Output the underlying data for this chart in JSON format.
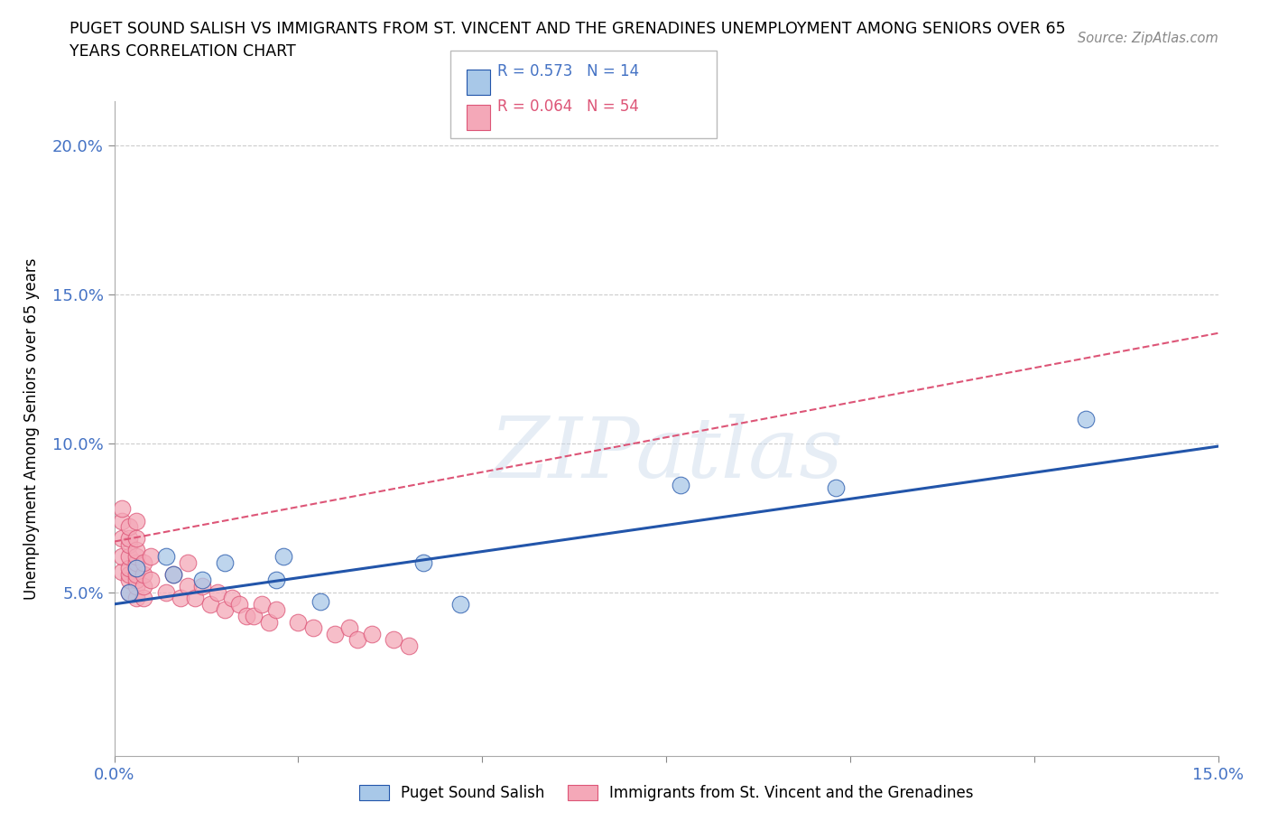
{
  "title_line1": "PUGET SOUND SALISH VS IMMIGRANTS FROM ST. VINCENT AND THE GRENADINES UNEMPLOYMENT AMONG SENIORS OVER 65",
  "title_line2": "YEARS CORRELATION CHART",
  "source": "Source: ZipAtlas.com",
  "ylabel": "Unemployment Among Seniors over 65 years",
  "xlim": [
    0.0,
    0.15
  ],
  "ylim": [
    -0.005,
    0.215
  ],
  "blue_R": 0.573,
  "blue_N": 14,
  "pink_R": 0.064,
  "pink_N": 54,
  "blue_color": "#a8c8e8",
  "pink_color": "#f4a8b8",
  "blue_line_color": "#2255aa",
  "pink_line_color": "#dd5577",
  "watermark": "ZIPatlas",
  "blue_scatter_x": [
    0.002,
    0.003,
    0.007,
    0.008,
    0.012,
    0.015,
    0.022,
    0.023,
    0.028,
    0.042,
    0.047,
    0.077,
    0.098,
    0.132
  ],
  "blue_scatter_y": [
    0.05,
    0.058,
    0.062,
    0.056,
    0.054,
    0.06,
    0.054,
    0.062,
    0.047,
    0.06,
    0.046,
    0.086,
    0.085,
    0.108
  ],
  "pink_scatter_x": [
    0.001,
    0.001,
    0.001,
    0.001,
    0.001,
    0.002,
    0.002,
    0.002,
    0.002,
    0.002,
    0.002,
    0.002,
    0.002,
    0.003,
    0.003,
    0.003,
    0.003,
    0.003,
    0.003,
    0.003,
    0.003,
    0.003,
    0.003,
    0.004,
    0.004,
    0.004,
    0.004,
    0.005,
    0.005,
    0.007,
    0.008,
    0.009,
    0.01,
    0.01,
    0.011,
    0.012,
    0.013,
    0.014,
    0.015,
    0.016,
    0.017,
    0.018,
    0.019,
    0.02,
    0.021,
    0.022,
    0.025,
    0.027,
    0.03,
    0.032,
    0.033,
    0.035,
    0.038,
    0.04
  ],
  "pink_scatter_y": [
    0.057,
    0.062,
    0.068,
    0.074,
    0.078,
    0.05,
    0.054,
    0.056,
    0.058,
    0.062,
    0.066,
    0.068,
    0.072,
    0.048,
    0.052,
    0.054,
    0.056,
    0.058,
    0.06,
    0.062,
    0.064,
    0.068,
    0.074,
    0.048,
    0.052,
    0.056,
    0.06,
    0.054,
    0.062,
    0.05,
    0.056,
    0.048,
    0.052,
    0.06,
    0.048,
    0.052,
    0.046,
    0.05,
    0.044,
    0.048,
    0.046,
    0.042,
    0.042,
    0.046,
    0.04,
    0.044,
    0.04,
    0.038,
    0.036,
    0.038,
    0.034,
    0.036,
    0.034,
    0.032
  ],
  "blue_line_x0": 0.0,
  "blue_line_y0": 0.046,
  "blue_line_x1": 0.15,
  "blue_line_y1": 0.099,
  "pink_line_x0": 0.0,
  "pink_line_y0": 0.067,
  "pink_line_x1": 0.15,
  "pink_line_y1": 0.137
}
